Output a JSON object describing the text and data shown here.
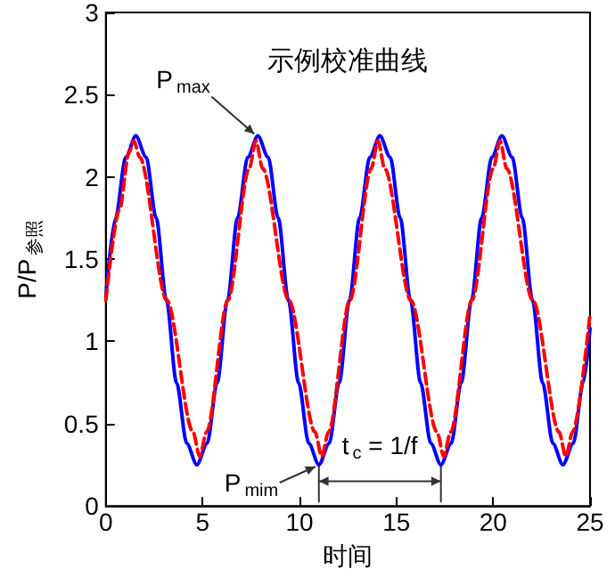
{
  "chart_data": {
    "type": "line",
    "title": "示例校准曲线",
    "xlabel": "时间",
    "ylabel": "P/P$_{参照}$",
    "xlim": [
      0,
      25
    ],
    "xticks": [
      0,
      5,
      10,
      15,
      20,
      25
    ],
    "ylim": [
      0,
      3
    ],
    "yticks": [
      0,
      0.5,
      1,
      1.5,
      2,
      2.5,
      3
    ],
    "grid": false,
    "marker": "none",
    "series": [
      {
        "color": "#0000ff",
        "line_style": "solid",
        "x": [
          0,
          0.5,
          1.03,
          1.55,
          2.08,
          2.6,
          3.13,
          3.65,
          4.18,
          4.7,
          5.23,
          5.75,
          6.28,
          6.8,
          7.33,
          7.85,
          8.38,
          8.9,
          9.43,
          9.95,
          10.48,
          11.0,
          11.53,
          12.05,
          12.58,
          13.1,
          13.63,
          14.15,
          14.68,
          15.2,
          15.73,
          16.25,
          16.78,
          17.3,
          17.83,
          18.35,
          18.88,
          19.4,
          19.93,
          20.45,
          20.98,
          21.5,
          22.03,
          22.55,
          23.08,
          23.6,
          24.13,
          24.65,
          25
        ],
        "values": [
          1.27,
          1.75,
          2.12,
          2.25,
          2.12,
          1.75,
          1.25,
          0.75,
          0.38,
          0.25,
          0.38,
          0.75,
          1.25,
          1.75,
          2.12,
          2.25,
          2.12,
          1.75,
          1.25,
          0.75,
          0.38,
          0.25,
          0.38,
          0.75,
          1.25,
          1.75,
          2.12,
          2.25,
          2.12,
          1.75,
          1.25,
          0.75,
          0.38,
          0.25,
          0.38,
          0.75,
          1.25,
          1.75,
          2.12,
          2.25,
          2.12,
          1.75,
          1.25,
          0.75,
          0.38,
          0.25,
          0.38,
          0.75,
          1.08
        ]
      },
      {
        "color": "#ff0000",
        "line_style": "dashed",
        "x": [
          0,
          0.7,
          1.2,
          1.45,
          1.75,
          3.15,
          4.5,
          4.85,
          5.2,
          6.3,
          7.4,
          7.75,
          8.1,
          9.45,
          10.8,
          11.15,
          11.5,
          12.6,
          13.7,
          14.05,
          14.4,
          15.75,
          17.1,
          17.45,
          17.8,
          18.9,
          20.0,
          20.35,
          20.7,
          22.05,
          23.4,
          23.75,
          24.1,
          25
        ],
        "values": [
          1.25,
          1.8,
          2.15,
          2.22,
          2.12,
          1.25,
          0.45,
          0.3,
          0.45,
          1.25,
          2.05,
          2.22,
          2.05,
          1.25,
          0.45,
          0.3,
          0.45,
          1.25,
          2.05,
          2.22,
          2.05,
          1.25,
          0.45,
          0.3,
          0.45,
          1.25,
          2.05,
          2.22,
          2.05,
          1.25,
          0.45,
          0.3,
          0.45,
          1.17
        ]
      }
    ],
    "annotations": [
      {
        "text": "P$_{max}$",
        "x": 7.85,
        "y": 2.25
      },
      {
        "text": "P$_{mim}$",
        "x": 11.0,
        "y": 0.25
      },
      "t$_{c}$ = 1/f"
    ]
  }
}
